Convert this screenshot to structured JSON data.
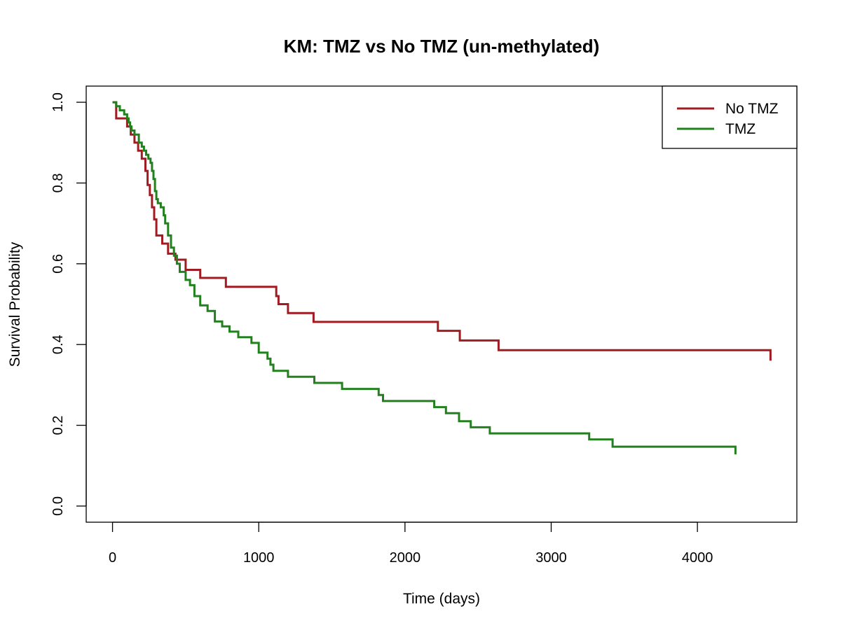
{
  "chart_data": {
    "type": "line",
    "subtype": "kaplan-meier step",
    "title": "KM: TMZ vs No TMZ (un-methylated)",
    "xlabel": "Time (days)",
    "ylabel": "Survival Probability",
    "xlim": [
      -180,
      4680
    ],
    "ylim": [
      -0.04,
      1.04
    ],
    "xticks": [
      0,
      1000,
      2000,
      3000,
      4000
    ],
    "xtick_labels": [
      "0",
      "1000",
      "2000",
      "3000",
      "4000"
    ],
    "yticks": [
      0.0,
      0.2,
      0.4,
      0.6,
      0.8,
      1.0
    ],
    "ytick_labels": [
      "0.0",
      "0.2",
      "0.4",
      "0.6",
      "0.8",
      "1.0"
    ],
    "grid": false,
    "legend_position": "top-right",
    "series": [
      {
        "name": "No TMZ",
        "color": "#A01C22",
        "x": [
          0,
          25,
          100,
          125,
          150,
          175,
          200,
          225,
          240,
          255,
          270,
          285,
          300,
          340,
          380,
          430,
          500,
          600,
          775,
          1120,
          1135,
          1200,
          1375,
          2225,
          2375,
          2640,
          4500
        ],
        "y": [
          1.0,
          0.96,
          0.94,
          0.92,
          0.9,
          0.88,
          0.86,
          0.83,
          0.795,
          0.77,
          0.74,
          0.71,
          0.67,
          0.65,
          0.625,
          0.61,
          0.585,
          0.565,
          0.543,
          0.52,
          0.5,
          0.478,
          0.456,
          0.434,
          0.41,
          0.386,
          0.36
        ]
      },
      {
        "name": "TMZ",
        "color": "#23801F",
        "x": [
          0,
          25,
          50,
          80,
          100,
          110,
          120,
          130,
          150,
          180,
          200,
          215,
          230,
          245,
          260,
          270,
          280,
          290,
          300,
          310,
          330,
          350,
          360,
          380,
          400,
          420,
          440,
          460,
          500,
          530,
          560,
          600,
          650,
          700,
          750,
          800,
          860,
          950,
          1000,
          1060,
          1080,
          1100,
          1200,
          1380,
          1570,
          1820,
          1850,
          2200,
          2280,
          2370,
          2450,
          2580,
          3260,
          3420,
          4260
        ],
        "y": [
          1.0,
          0.99,
          0.98,
          0.97,
          0.96,
          0.95,
          0.94,
          0.93,
          0.92,
          0.9,
          0.89,
          0.88,
          0.87,
          0.86,
          0.85,
          0.83,
          0.81,
          0.78,
          0.76,
          0.75,
          0.74,
          0.72,
          0.7,
          0.67,
          0.64,
          0.62,
          0.6,
          0.58,
          0.56,
          0.547,
          0.52,
          0.497,
          0.483,
          0.457,
          0.445,
          0.432,
          0.418,
          0.404,
          0.38,
          0.365,
          0.35,
          0.335,
          0.32,
          0.305,
          0.29,
          0.275,
          0.26,
          0.245,
          0.23,
          0.21,
          0.195,
          0.18,
          0.165,
          0.147,
          0.128
        ]
      }
    ]
  }
}
